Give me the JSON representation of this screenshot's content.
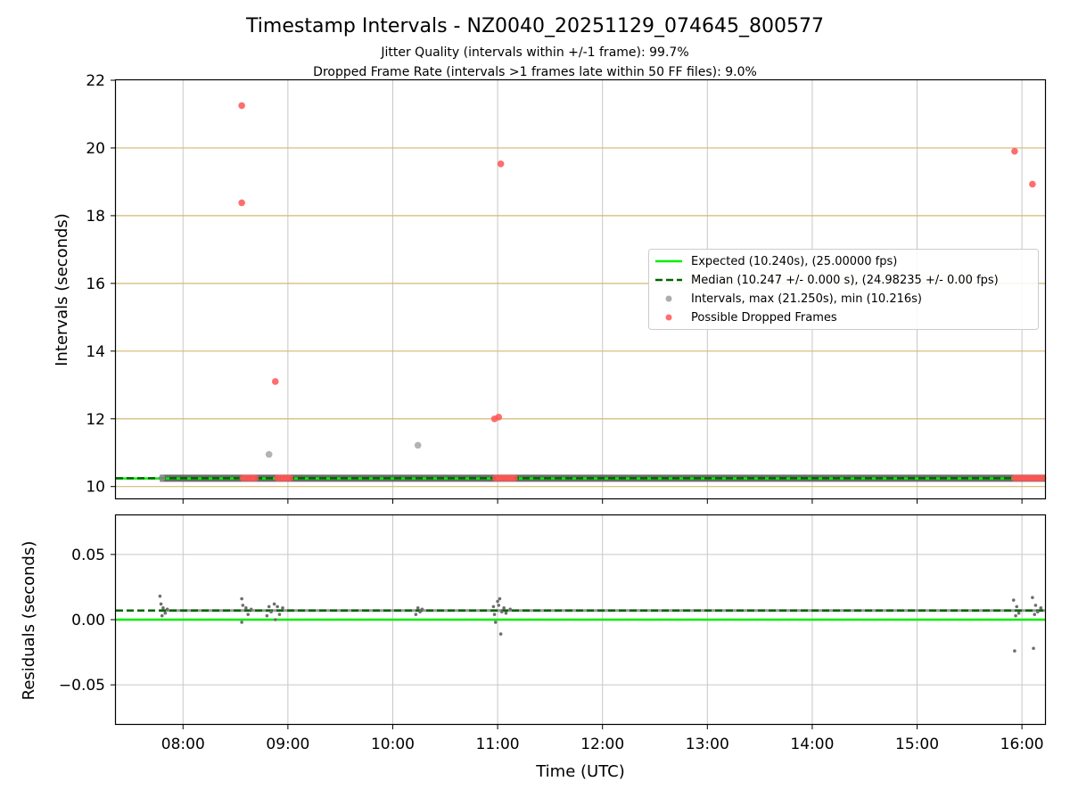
{
  "chart_data": [
    {
      "type": "scatter",
      "title": "Timestamp Intervals - NZ0040_20251129_074645_800577",
      "subtitle_lines": [
        "Jitter Quality (intervals within +/-1 frame): 99.7%",
        "Dropped Frame Rate (intervals >1 frames late within 50 FF files): 9.0%"
      ],
      "ylabel": "Intervals (seconds)",
      "xlim": [
        7.36,
        16.22
      ],
      "ylim": [
        9.65,
        22
      ],
      "yticks": [
        "10",
        "12",
        "14",
        "16",
        "18",
        "20",
        "22"
      ],
      "ytick_values": [
        10,
        12,
        14,
        16,
        18,
        20,
        22
      ],
      "xtick_values": [
        8,
        9,
        10,
        11,
        12,
        13,
        14,
        15,
        16
      ],
      "frame_lines": [
        10.0,
        12.0,
        14.0,
        16.0,
        18.0,
        20.0
      ],
      "expected": 10.24,
      "median": 10.247,
      "normal_band": {
        "x_start": 7.78,
        "x_end": 16.22,
        "y": 10.247
      },
      "legend": [
        {
          "label": "Expected (10.240s), (25.00000 fps)",
          "color": "#00ee00",
          "style": "solid"
        },
        {
          "label": "Median (10.247 +/- 0.000 s), (24.98235 +/- 0.00 fps)",
          "color": "#006400",
          "style": "dashed"
        },
        {
          "label": "Intervals, max (21.250s), min (10.216s)",
          "color": "#999999",
          "style": "dot"
        },
        {
          "label": "Possible Dropped Frames",
          "color": "#ff5555",
          "style": "dot"
        }
      ],
      "intervals": [
        {
          "x": 8.82,
          "y": 10.95
        },
        {
          "x": 10.24,
          "y": 11.22
        },
        {
          "x": 7.8,
          "y": 10.25
        }
      ],
      "dropped_frames": [
        {
          "x": 8.56,
          "y": 21.25
        },
        {
          "x": 8.56,
          "y": 18.38
        },
        {
          "x": 8.88,
          "y": 13.1
        },
        {
          "x": 11.03,
          "y": 19.53
        },
        {
          "x": 10.97,
          "y": 12.0
        },
        {
          "x": 11.01,
          "y": 12.05
        },
        {
          "x": 15.93,
          "y": 19.9
        },
        {
          "x": 16.1,
          "y": 18.93
        },
        {
          "x": 8.57,
          "y": 10.25
        },
        {
          "x": 8.6,
          "y": 10.25
        },
        {
          "x": 8.63,
          "y": 10.25
        },
        {
          "x": 8.66,
          "y": 10.25
        },
        {
          "x": 8.69,
          "y": 10.25
        },
        {
          "x": 8.9,
          "y": 10.25
        },
        {
          "x": 8.93,
          "y": 10.25
        },
        {
          "x": 8.96,
          "y": 10.25
        },
        {
          "x": 8.99,
          "y": 10.25
        },
        {
          "x": 9.02,
          "y": 10.25
        },
        {
          "x": 10.98,
          "y": 10.25
        },
        {
          "x": 11.01,
          "y": 10.25
        },
        {
          "x": 11.04,
          "y": 10.25
        },
        {
          "x": 11.07,
          "y": 10.25
        },
        {
          "x": 11.1,
          "y": 10.25
        },
        {
          "x": 11.13,
          "y": 10.25
        },
        {
          "x": 11.16,
          "y": 10.25
        },
        {
          "x": 15.93,
          "y": 10.25
        },
        {
          "x": 15.96,
          "y": 10.25
        },
        {
          "x": 15.99,
          "y": 10.25
        },
        {
          "x": 16.02,
          "y": 10.25
        },
        {
          "x": 16.05,
          "y": 10.25
        },
        {
          "x": 16.08,
          "y": 10.25
        },
        {
          "x": 16.11,
          "y": 10.25
        },
        {
          "x": 16.14,
          "y": 10.25
        },
        {
          "x": 16.17,
          "y": 10.25
        },
        {
          "x": 16.2,
          "y": 10.25
        }
      ]
    },
    {
      "type": "scatter",
      "ylabel": "Residuals (seconds)",
      "xlabel": "Time (UTC)",
      "xlim": [
        7.36,
        16.22
      ],
      "ylim": [
        -0.08,
        0.08
      ],
      "yticks": [
        "0.05",
        "0.00",
        "−0.05"
      ],
      "ytick_values": [
        0.05,
        0.0,
        -0.05
      ],
      "xticks": [
        "08:00",
        "09:00",
        "10:00",
        "11:00",
        "12:00",
        "13:00",
        "14:00",
        "15:00",
        "16:00"
      ],
      "xtick_values": [
        8,
        9,
        10,
        11,
        12,
        13,
        14,
        15,
        16
      ],
      "expected": 0.0,
      "median": 0.007,
      "residuals": [
        {
          "x": 7.78,
          "y": 0.018
        },
        {
          "x": 7.79,
          "y": 0.012
        },
        {
          "x": 7.8,
          "y": 0.003
        },
        {
          "x": 7.81,
          "y": 0.009
        },
        {
          "x": 7.83,
          "y": 0.005
        },
        {
          "x": 7.85,
          "y": 0.008
        },
        {
          "x": 8.56,
          "y": 0.016
        },
        {
          "x": 8.56,
          "y": -0.002
        },
        {
          "x": 8.57,
          "y": 0.011
        },
        {
          "x": 8.6,
          "y": 0.009
        },
        {
          "x": 8.62,
          "y": 0.004
        },
        {
          "x": 8.65,
          "y": 0.008
        },
        {
          "x": 8.8,
          "y": 0.003
        },
        {
          "x": 8.82,
          "y": 0.01
        },
        {
          "x": 8.84,
          "y": 0.006
        },
        {
          "x": 8.87,
          "y": 0.012
        },
        {
          "x": 8.88,
          "y": 0.0
        },
        {
          "x": 8.9,
          "y": 0.01
        },
        {
          "x": 8.92,
          "y": 0.004
        },
        {
          "x": 8.95,
          "y": 0.009
        },
        {
          "x": 10.22,
          "y": 0.004
        },
        {
          "x": 10.24,
          "y": 0.009
        },
        {
          "x": 10.26,
          "y": 0.006
        },
        {
          "x": 10.28,
          "y": 0.008
        },
        {
          "x": 10.96,
          "y": 0.01
        },
        {
          "x": 10.97,
          "y": 0.004
        },
        {
          "x": 10.98,
          "y": -0.002
        },
        {
          "x": 11.0,
          "y": 0.014
        },
        {
          "x": 11.01,
          "y": 0.011
        },
        {
          "x": 11.02,
          "y": 0.016
        },
        {
          "x": 11.03,
          "y": -0.011
        },
        {
          "x": 11.04,
          "y": 0.006
        },
        {
          "x": 11.06,
          "y": 0.009
        },
        {
          "x": 11.08,
          "y": 0.005
        },
        {
          "x": 11.12,
          "y": 0.008
        },
        {
          "x": 15.92,
          "y": 0.015
        },
        {
          "x": 15.93,
          "y": -0.024
        },
        {
          "x": 15.94,
          "y": 0.003
        },
        {
          "x": 15.95,
          "y": 0.01
        },
        {
          "x": 15.97,
          "y": 0.005
        },
        {
          "x": 16.1,
          "y": 0.017
        },
        {
          "x": 16.11,
          "y": -0.022
        },
        {
          "x": 16.12,
          "y": 0.004
        },
        {
          "x": 16.13,
          "y": 0.011
        },
        {
          "x": 16.15,
          "y": 0.006
        },
        {
          "x": 16.18,
          "y": 0.009
        }
      ]
    }
  ],
  "colors": {
    "expected_line": "#00ee00",
    "median_line": "#006400",
    "interval_dot": "#999999",
    "dropped_dot": "#ff5555",
    "grid": "#c8c8c8",
    "frame_line": "#d2b870",
    "band": "#5a5a5a",
    "residual_dot": "#6e6e6e"
  }
}
